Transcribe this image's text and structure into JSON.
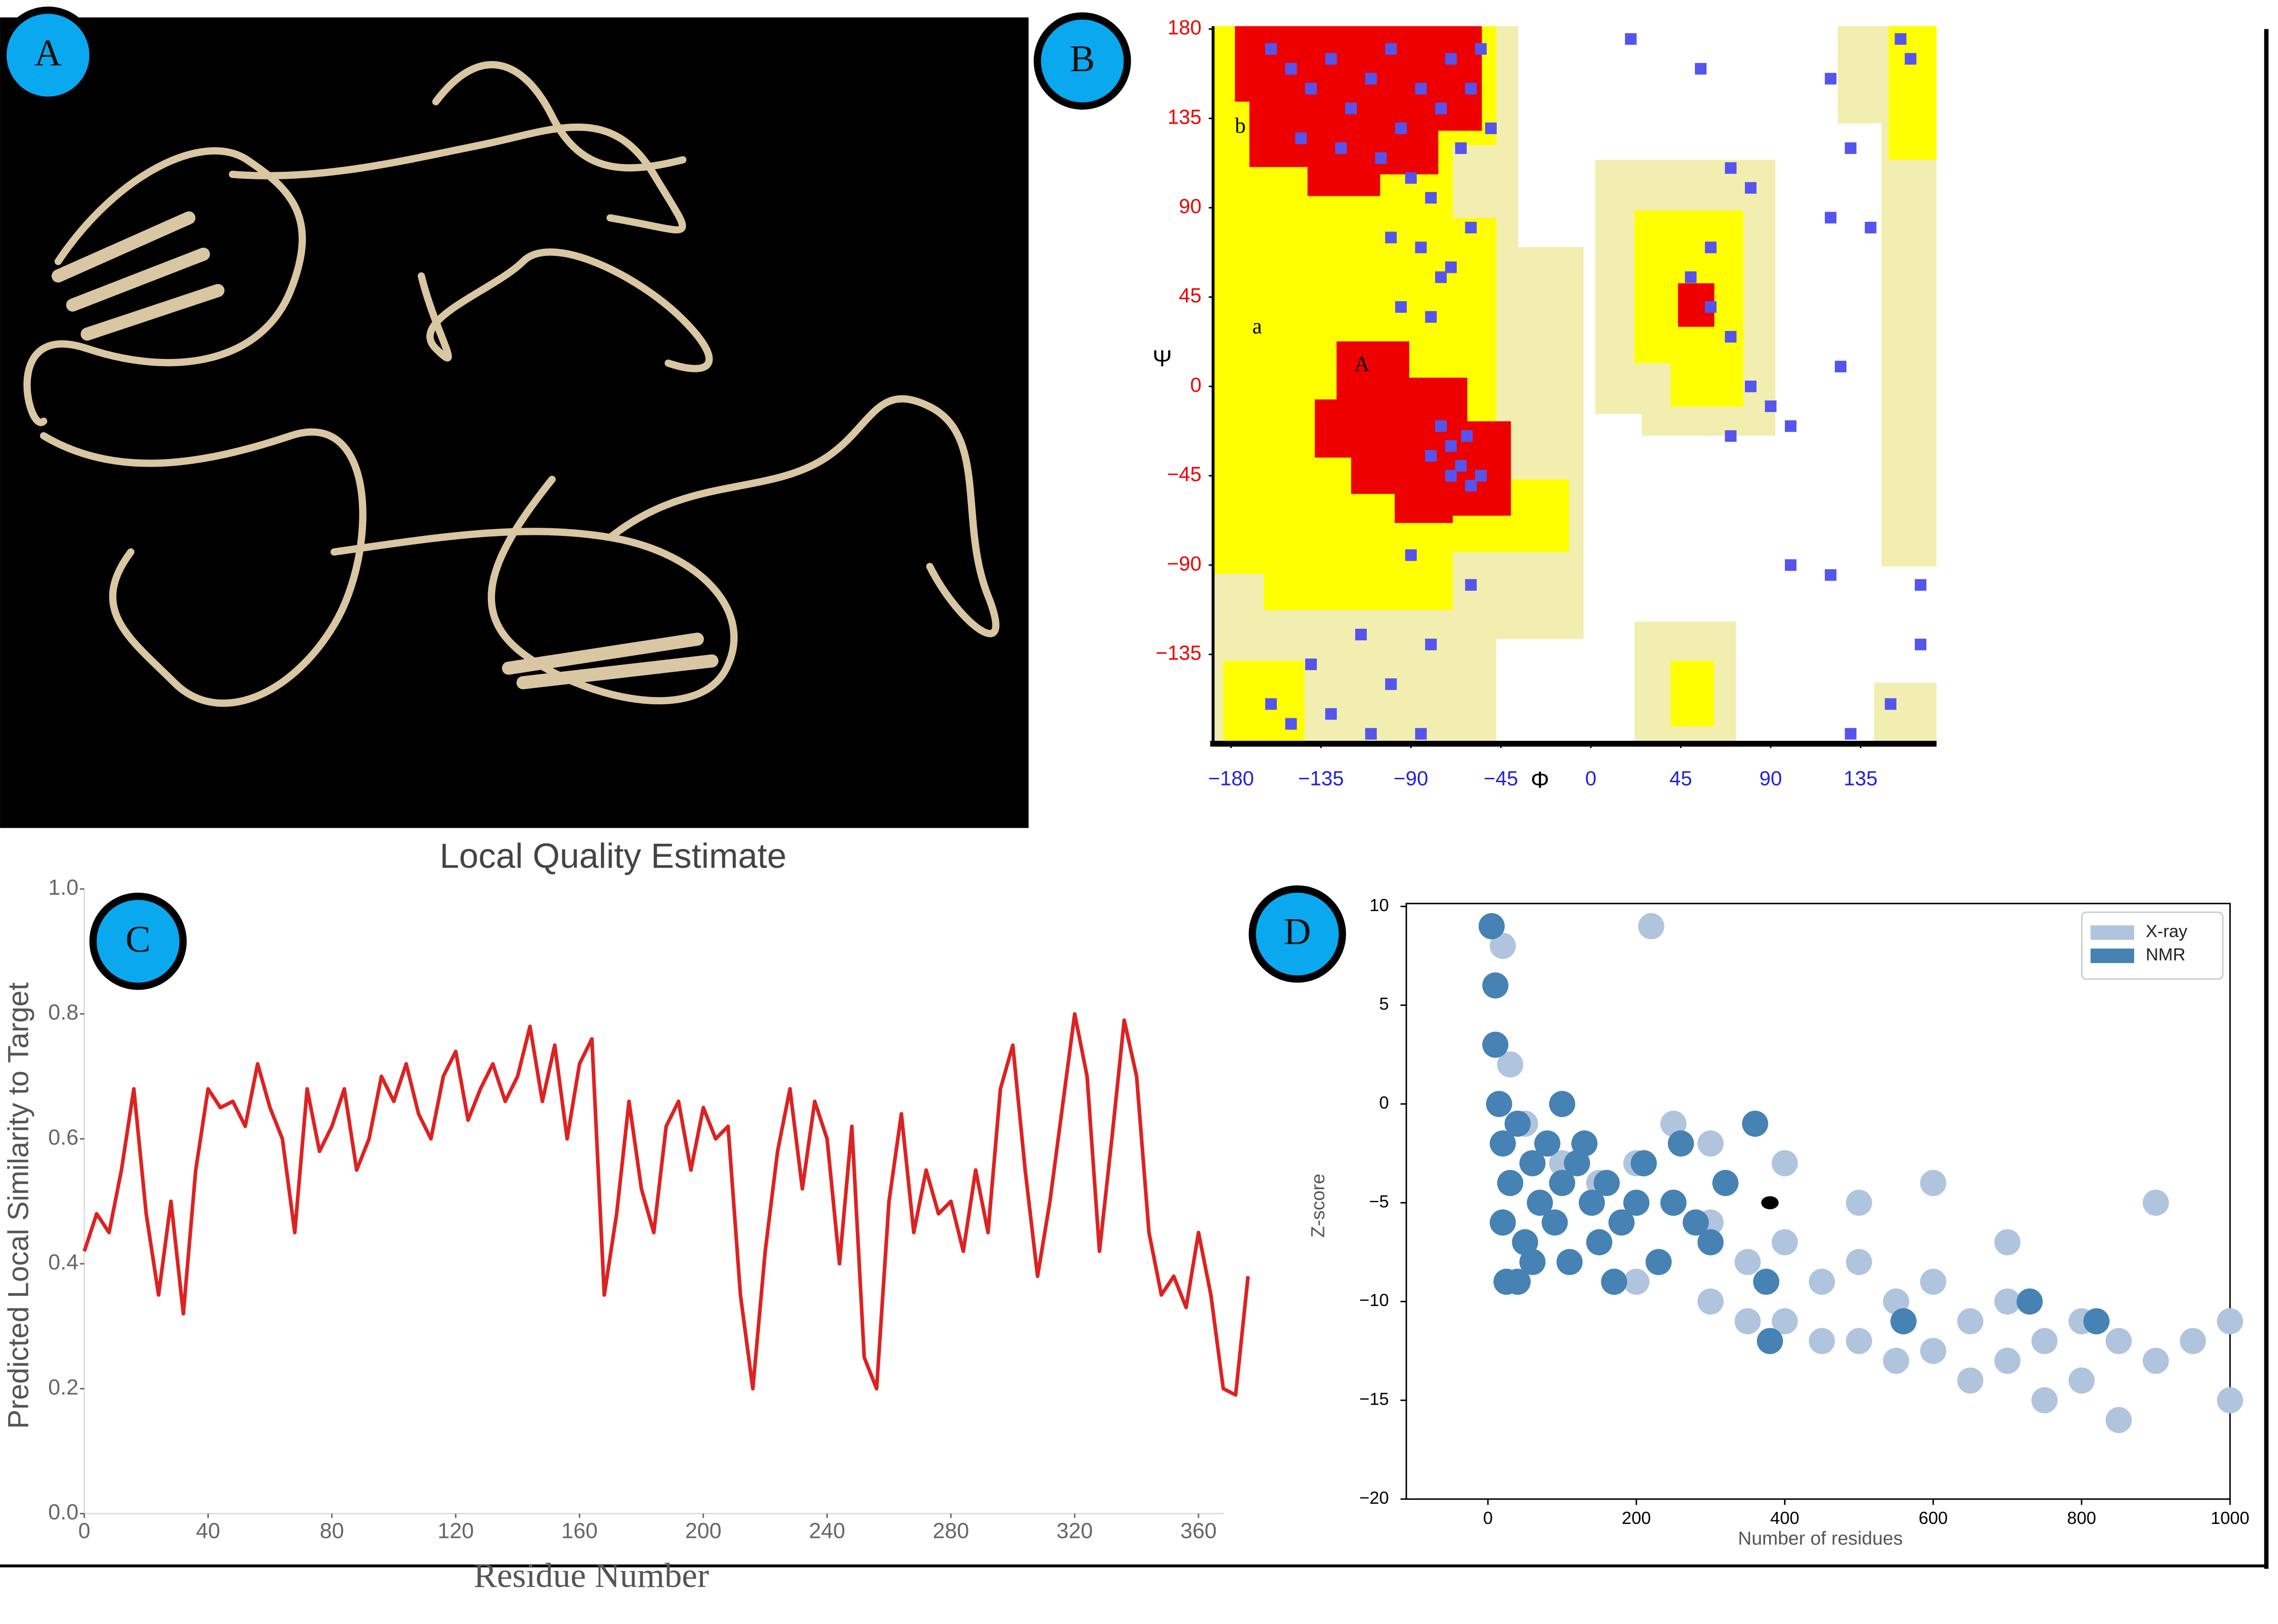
{
  "panel_labels": [
    "A",
    "B",
    "C",
    "D"
  ],
  "chart_data": [
    {
      "type": "scatter",
      "marker": "square",
      "xlabel": "Φ",
      "ylabel": "Ψ",
      "annotations": [
        "b",
        "a",
        "A"
      ],
      "xlim": [
        -189,
        173
      ],
      "ylim": [
        -180,
        180
      ],
      "xticks": [
        {
          "value": -180,
          "label": "−180"
        },
        {
          "value": -135,
          "label": "−135"
        },
        {
          "value": -90,
          "label": "−90"
        },
        {
          "value": -45,
          "label": "−45"
        },
        0,
        45,
        90,
        135
      ],
      "yticks": [
        180,
        135,
        90,
        45,
        0,
        {
          "value": -45,
          "label": "−45"
        },
        {
          "value": -90,
          "label": "−90"
        },
        {
          "value": -135,
          "label": "−135"
        }
      ],
      "xtick_color": "#2222dd",
      "ytick_color": "#ee0000",
      "series": [
        {
          "color": "#5555ee",
          "x": [
            -160,
            -150,
            -140,
            -130,
            -120,
            -110,
            -100,
            -95,
            -85,
            -75,
            -70,
            -145,
            -125,
            -105,
            -90,
            -80,
            -65,
            -60,
            -55,
            -50,
            -100,
            -85,
            -70,
            -60,
            -95,
            -75,
            -80,
            -75,
            -70,
            -65,
            -60,
            -55,
            -70,
            -80,
            -62,
            -160,
            -150,
            -130,
            -110,
            -100,
            -85,
            -80,
            -140,
            -115,
            -60,
            -90,
            20,
            55,
            70,
            80,
            60,
            50,
            60,
            70,
            80,
            90,
            70,
            100,
            130,
            120,
            140,
            125,
            120,
            100,
            165,
            150,
            130,
            165,
            155,
            160,
            120
          ],
          "values": [
            170,
            160,
            150,
            165,
            140,
            155,
            170,
            130,
            150,
            140,
            165,
            125,
            120,
            115,
            105,
            95,
            120,
            150,
            170,
            130,
            75,
            70,
            60,
            80,
            40,
            55,
            35,
            -20,
            -30,
            -40,
            -50,
            -45,
            -45,
            -35,
            -25,
            -160,
            -170,
            -165,
            -175,
            -150,
            -175,
            -130,
            -140,
            -125,
            -100,
            -85,
            175,
            160,
            110,
            100,
            70,
            55,
            40,
            25,
            0,
            -10,
            -25,
            -20,
            120,
            85,
            80,
            10,
            -95,
            -90,
            -130,
            -160,
            -175,
            -100,
            175,
            165,
            155
          ]
        }
      ]
    },
    {
      "type": "line",
      "title": "Local Quality Estimate",
      "xlabel": "Residue Number",
      "ylabel": "Predicted Local Similarity to Target",
      "color": "#dd2222",
      "xlim": [
        0,
        368
      ],
      "ylim": [
        0,
        1
      ],
      "xticks": [
        0,
        40,
        80,
        120,
        160,
        200,
        240,
        280,
        320,
        360
      ],
      "yticks": [
        {
          "value": 0,
          "label": "0.0"
        },
        0.2,
        0.4,
        0.6,
        0.8,
        {
          "value": 1,
          "label": "1.0"
        }
      ],
      "x": [
        0,
        4,
        8,
        12,
        16,
        20,
        24,
        28,
        32,
        36,
        40,
        44,
        48,
        52,
        56,
        60,
        64,
        68,
        72,
        76,
        80,
        84,
        88,
        92,
        96,
        100,
        104,
        108,
        112,
        116,
        120,
        124,
        128,
        132,
        136,
        140,
        144,
        148,
        152,
        156,
        160,
        164,
        168,
        172,
        176,
        180,
        184,
        188,
        192,
        196,
        200,
        204,
        208,
        212,
        216,
        220,
        224,
        228,
        232,
        236,
        240,
        244,
        248,
        252,
        256,
        260,
        264,
        268,
        272,
        276,
        280,
        284,
        288,
        292,
        296,
        300,
        304,
        308,
        312,
        316,
        320,
        324,
        328,
        332,
        336,
        340,
        344,
        348,
        352,
        356,
        360,
        364,
        368,
        372,
        376
      ],
      "values": [
        0.42,
        0.48,
        0.45,
        0.55,
        0.68,
        0.48,
        0.35,
        0.5,
        0.32,
        0.55,
        0.68,
        0.65,
        0.66,
        0.62,
        0.72,
        0.65,
        0.6,
        0.45,
        0.68,
        0.58,
        0.62,
        0.68,
        0.55,
        0.6,
        0.7,
        0.66,
        0.72,
        0.64,
        0.6,
        0.7,
        0.74,
        0.63,
        0.68,
        0.72,
        0.66,
        0.7,
        0.78,
        0.66,
        0.75,
        0.6,
        0.72,
        0.76,
        0.35,
        0.48,
        0.66,
        0.52,
        0.45,
        0.62,
        0.66,
        0.55,
        0.65,
        0.6,
        0.62,
        0.35,
        0.2,
        0.42,
        0.58,
        0.68,
        0.52,
        0.66,
        0.6,
        0.4,
        0.62,
        0.25,
        0.2,
        0.5,
        0.64,
        0.45,
        0.55,
        0.48,
        0.5,
        0.42,
        0.55,
        0.45,
        0.68,
        0.75,
        0.55,
        0.38,
        0.5,
        0.65,
        0.8,
        0.7,
        0.42,
        0.6,
        0.79,
        0.7,
        0.45,
        0.35,
        0.38,
        0.33,
        0.45,
        0.35,
        0.2,
        0.19,
        0.38
      ]
    },
    {
      "type": "scatter",
      "marker": "circle",
      "xlabel": "Number of residues",
      "ylabel": "Z-score",
      "xlim": [
        -110,
        1000
      ],
      "ylim": [
        -20,
        10
      ],
      "xticks": [
        0,
        200,
        400,
        600,
        800,
        1000
      ],
      "yticks": [
        10,
        5,
        0,
        {
          "value": -5,
          "label": "−5"
        },
        {
          "value": -10,
          "label": "−10"
        },
        {
          "value": -15,
          "label": "−15"
        },
        {
          "value": -20,
          "label": "−20"
        }
      ],
      "legend": "upper right",
      "series": [
        {
          "name": "X-ray",
          "color": "#b0c4de",
          "x": [
            20,
            30,
            50,
            80,
            100,
            150,
            200,
            220,
            250,
            300,
            300,
            350,
            400,
            400,
            450,
            500,
            500,
            550,
            600,
            600,
            650,
            700,
            700,
            750,
            800,
            800,
            850,
            850,
            900,
            900,
            950,
            1000,
            1000,
            250,
            350,
            450,
            550,
            650,
            750,
            150,
            200,
            300,
            400,
            500,
            600,
            700
          ],
          "values": [
            8,
            2,
            -1,
            -2,
            -3,
            -4,
            -3,
            9,
            -5,
            -6,
            -2,
            -8,
            -7,
            -3,
            -9,
            -8,
            -5,
            -10,
            -9,
            -4,
            -11,
            -10,
            -7,
            -12,
            -11,
            -14,
            -12,
            -16,
            -5,
            -13,
            -12,
            -11,
            -15,
            -1,
            -11,
            -12,
            -13,
            -14,
            -15,
            -7,
            -9,
            -10,
            -11,
            -12,
            -12.5,
            -13
          ]
        },
        {
          "name": "NMR",
          "color": "#4682b4",
          "x": [
            5,
            10,
            10,
            15,
            20,
            20,
            25,
            30,
            40,
            50,
            60,
            70,
            80,
            90,
            100,
            110,
            120,
            140,
            150,
            160,
            180,
            200,
            210,
            230,
            250,
            260,
            280,
            300,
            320,
            360,
            375,
            380,
            560,
            730,
            820,
            40,
            60,
            130,
            170,
            100
          ],
          "values": [
            9,
            6,
            3,
            0,
            -2,
            -6,
            -9,
            -4,
            -1,
            -7,
            -3,
            -5,
            -2,
            -6,
            -4,
            -8,
            -3,
            -5,
            -7,
            -4,
            -6,
            -5,
            -3,
            -8,
            -5,
            -2,
            -6,
            -7,
            -4,
            -1,
            -9,
            -12,
            -11,
            -10,
            -11,
            -9,
            -8,
            -2,
            -9,
            0
          ]
        }
      ],
      "highlight": {
        "x": 380,
        "value": -5,
        "color": "#000000"
      }
    }
  ]
}
